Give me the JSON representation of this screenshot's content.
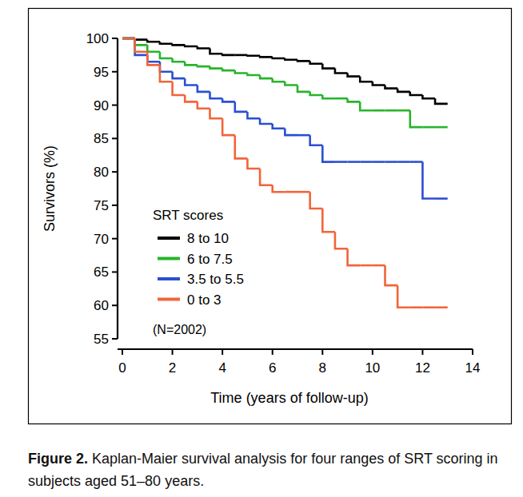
{
  "chart_data": {
    "type": "line",
    "line_style": "step",
    "x_label": "Time (years of follow-up)",
    "y_label": "Survivors (%)",
    "legend_title": "SRT scores",
    "legend": "center left",
    "annotations": [
      {
        "text": "(N=2002)"
      }
    ],
    "caption": {
      "label": "Figure 2.",
      "text": "Kaplan-Maier survival analysis for four ranges of SRT scoring in subjects aged 51–80 years."
    },
    "xlim": [
      0,
      14
    ],
    "xticks": [
      0,
      2,
      4,
      6,
      8,
      10,
      12,
      14
    ],
    "ylim": [
      55,
      100
    ],
    "yticks": [
      55,
      60,
      65,
      70,
      75,
      80,
      85,
      90,
      95,
      100
    ],
    "grid": false,
    "x": [
      0,
      0.5,
      1,
      1.5,
      2,
      2.5,
      3,
      3.5,
      4,
      4.5,
      5,
      5.5,
      6,
      6.5,
      7,
      7.5,
      8,
      8.5,
      9,
      9.5,
      10,
      10.5,
      11,
      11.5,
      12,
      12.5,
      13
    ],
    "series": [
      {
        "name": "8 to 10",
        "color": "#000000",
        "values": [
          100,
          99.8,
          99.5,
          99.2,
          99,
          98.8,
          98.5,
          97.7,
          97.5,
          97.5,
          97.4,
          97.2,
          97,
          96.8,
          96.6,
          96.2,
          95.5,
          94.8,
          94.3,
          93.5,
          93,
          92.5,
          92,
          91.5,
          91,
          90.2,
          90.2
        ]
      },
      {
        "name": "6 to 7.5",
        "color": "#27b42a",
        "values": [
          100,
          99,
          98,
          97,
          96.5,
          96,
          95.8,
          95.5,
          95.2,
          94.8,
          94.5,
          94,
          93.5,
          93,
          92,
          91.5,
          91,
          91,
          90.5,
          89.2,
          89.2,
          89.2,
          89.2,
          86.7,
          86.7,
          86.7,
          86.7
        ]
      },
      {
        "name": "3.5 to 5.5",
        "color": "#2b4fd2",
        "values": [
          100,
          97.5,
          96.5,
          95,
          94,
          93,
          92,
          91,
          90.5,
          89,
          88,
          87.2,
          86.5,
          85.5,
          85.5,
          84,
          81.5,
          81.5,
          81.5,
          81.5,
          81.5,
          81.5,
          81.5,
          81.5,
          76,
          76,
          76
        ]
      },
      {
        "name": "0 to 3",
        "color": "#f2643a",
        "values": [
          100,
          98,
          96,
          93.5,
          91.5,
          90.5,
          89.5,
          88,
          85.5,
          82,
          80.5,
          78,
          77,
          77,
          77,
          74.5,
          71,
          68.5,
          66,
          66,
          66,
          63,
          59.7,
          59.7,
          59.7,
          59.7,
          59.7
        ]
      }
    ]
  }
}
